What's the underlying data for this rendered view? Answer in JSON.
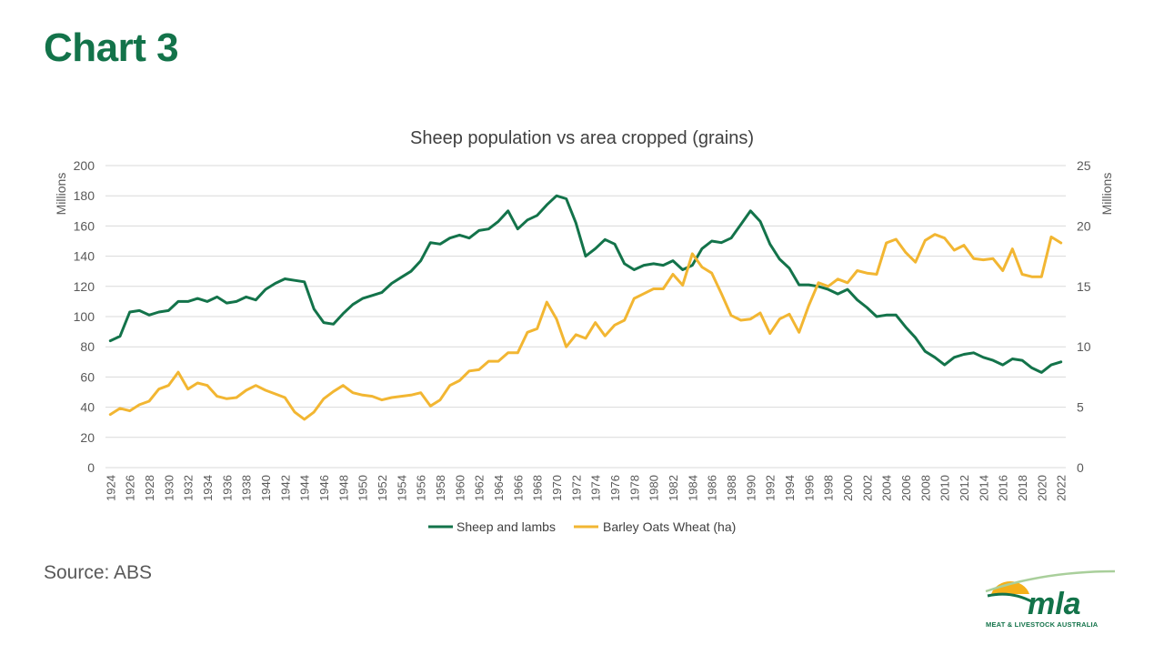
{
  "slide": {
    "title": "Chart 3",
    "source": "Source: ABS"
  },
  "logo": {
    "wordmark": "mla",
    "tagline": "MEAT & LIVESTOCK AUSTRALIA",
    "colors": {
      "sun": "#f5b01a",
      "green": "#13734a",
      "swoosh": "#a9cf9b"
    }
  },
  "chart_data": {
    "type": "line",
    "title": "Sheep population vs area cropped (grains)",
    "y_left_unit": "Millions",
    "y_right_unit": "Millions",
    "y_left_ticks": [
      "0",
      "20",
      "40",
      "60",
      "80",
      "100",
      "120",
      "140",
      "160",
      "180",
      "200"
    ],
    "y_right_ticks": [
      "0",
      "5",
      "10",
      "15",
      "20",
      "25"
    ],
    "ylim_left": [
      0,
      200
    ],
    "ylim_right": [
      0,
      25
    ],
    "grid": "horizontal",
    "legend_position": "bottom",
    "x": [
      1924,
      1925,
      1926,
      1927,
      1928,
      1929,
      1930,
      1931,
      1932,
      1933,
      1934,
      1935,
      1936,
      1937,
      1938,
      1939,
      1940,
      1941,
      1942,
      1943,
      1944,
      1945,
      1946,
      1947,
      1948,
      1949,
      1950,
      1951,
      1952,
      1953,
      1954,
      1955,
      1956,
      1957,
      1958,
      1959,
      1960,
      1961,
      1962,
      1963,
      1964,
      1965,
      1966,
      1967,
      1968,
      1969,
      1970,
      1971,
      1972,
      1973,
      1974,
      1975,
      1976,
      1977,
      1978,
      1979,
      1980,
      1981,
      1982,
      1983,
      1984,
      1985,
      1986,
      1987,
      1988,
      1989,
      1990,
      1991,
      1992,
      1993,
      1994,
      1995,
      1996,
      1997,
      1998,
      1999,
      2000,
      2001,
      2002,
      2003,
      2004,
      2005,
      2006,
      2007,
      2008,
      2009,
      2010,
      2011,
      2012,
      2013,
      2014,
      2015,
      2016,
      2017,
      2018,
      2019,
      2020,
      2021,
      2022
    ],
    "x_tick_labels": [
      "1924",
      "1926",
      "1928",
      "1930",
      "1932",
      "1934",
      "1936",
      "1938",
      "1940",
      "1942",
      "1944",
      "1946",
      "1948",
      "1950",
      "1952",
      "1954",
      "1956",
      "1958",
      "1960",
      "1962",
      "1964",
      "1966",
      "1968",
      "1970",
      "1972",
      "1974",
      "1976",
      "1978",
      "1980",
      "1982",
      "1984",
      "1986",
      "1988",
      "1990",
      "1992",
      "1994",
      "1996",
      "1998",
      "2000",
      "2002",
      "2004",
      "2006",
      "2008",
      "2010",
      "2012",
      "2014",
      "2016",
      "2018",
      "2020",
      "2022"
    ],
    "series": [
      {
        "name": "Sheep and lambs",
        "axis": "left",
        "color": "#13734a",
        "values": [
          84,
          87,
          103,
          104,
          101,
          103,
          104,
          110,
          110,
          112,
          110,
          113,
          109,
          110,
          113,
          111,
          118,
          122,
          125,
          124,
          123,
          105,
          96,
          95,
          102,
          108,
          112,
          114,
          116,
          122,
          126,
          130,
          137,
          149,
          148,
          152,
          154,
          152,
          157,
          158,
          163,
          170,
          158,
          164,
          167,
          174,
          180,
          178,
          162,
          140,
          145,
          151,
          148,
          135,
          131,
          134,
          135,
          134,
          137,
          131,
          134,
          145,
          150,
          149,
          152,
          161,
          170,
          163,
          148,
          138,
          132,
          121,
          121,
          120,
          118,
          115,
          118,
          111,
          106,
          100,
          101,
          101,
          93,
          86,
          77,
          73,
          68,
          73,
          75,
          76,
          73,
          71,
          68,
          72,
          71,
          66,
          63,
          68,
          70
        ]
      },
      {
        "name": "Barley Oats Wheat (ha)",
        "axis": "right",
        "color": "#f2b632",
        "values": [
          4.4,
          4.9,
          4.7,
          5.2,
          5.5,
          6.5,
          6.8,
          7.9,
          6.5,
          7.0,
          6.8,
          5.9,
          5.7,
          5.8,
          6.4,
          6.8,
          6.4,
          6.1,
          5.8,
          4.6,
          4.0,
          4.6,
          5.7,
          6.3,
          6.8,
          6.2,
          6.0,
          5.9,
          5.6,
          5.8,
          5.9,
          6.0,
          6.2,
          5.1,
          5.6,
          6.8,
          7.2,
          8.0,
          8.1,
          8.8,
          8.8,
          9.5,
          9.5,
          11.2,
          11.5,
          13.7,
          12.3,
          10.0,
          11.0,
          10.7,
          12.0,
          10.9,
          11.8,
          12.2,
          14.0,
          14.4,
          14.8,
          14.8,
          16.0,
          15.1,
          17.7,
          16.6,
          16.1,
          14.4,
          12.6,
          12.2,
          12.3,
          12.8,
          11.1,
          12.3,
          12.7,
          11.2,
          13.4,
          15.3,
          15.0,
          15.6,
          15.3,
          16.3,
          16.1,
          16.0,
          18.6,
          18.9,
          17.8,
          17.0,
          18.8,
          19.3,
          19.0,
          18.0,
          18.4,
          17.3,
          17.2,
          17.3,
          16.3,
          18.1,
          16.0,
          15.8,
          15.8,
          19.1,
          18.6
        ]
      }
    ]
  }
}
